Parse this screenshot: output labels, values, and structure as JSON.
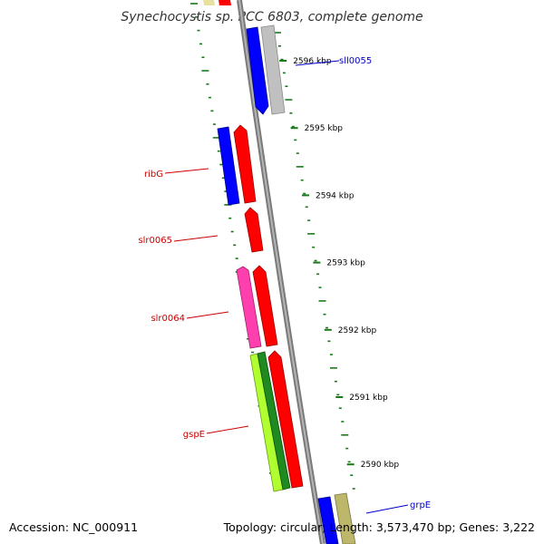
{
  "title": "Synechocystis sp. PCC 6803, complete genome",
  "footer": {
    "accession": "Accession: NC_000911",
    "summary": "Topology: circular; Length: 3,573,470 bp; Genes: 3,222"
  },
  "colors": {
    "backbone": "#8c8c8c",
    "tick": "#1a7a1a",
    "label_forward": "#0000cc",
    "label_reverse": "#cc0000"
  },
  "scale": {
    "unit": "kbp",
    "ticks": [
      {
        "label": "2596 kbp",
        "kb": 2596
      },
      {
        "label": "2595 kbp",
        "kb": 2595
      },
      {
        "label": "2594 kbp",
        "kb": 2594
      },
      {
        "label": "2593 kbp",
        "kb": 2593
      },
      {
        "label": "2592 kbp",
        "kb": 2592
      },
      {
        "label": "2591 kbp",
        "kb": 2591
      },
      {
        "label": "2590 kbp",
        "kb": 2590
      }
    ]
  },
  "genes": [
    {
      "name": "sll0055",
      "strand": "forward",
      "labeled": true
    },
    {
      "name": "grpE",
      "strand": "forward",
      "labeled": true
    },
    {
      "name": "ribG",
      "strand": "reverse",
      "labeled": true
    },
    {
      "name": "slr0065",
      "strand": "reverse",
      "labeled": true
    },
    {
      "name": "slr0064",
      "strand": "reverse",
      "labeled": true
    },
    {
      "name": "gspE",
      "strand": "reverse",
      "labeled": true
    }
  ]
}
